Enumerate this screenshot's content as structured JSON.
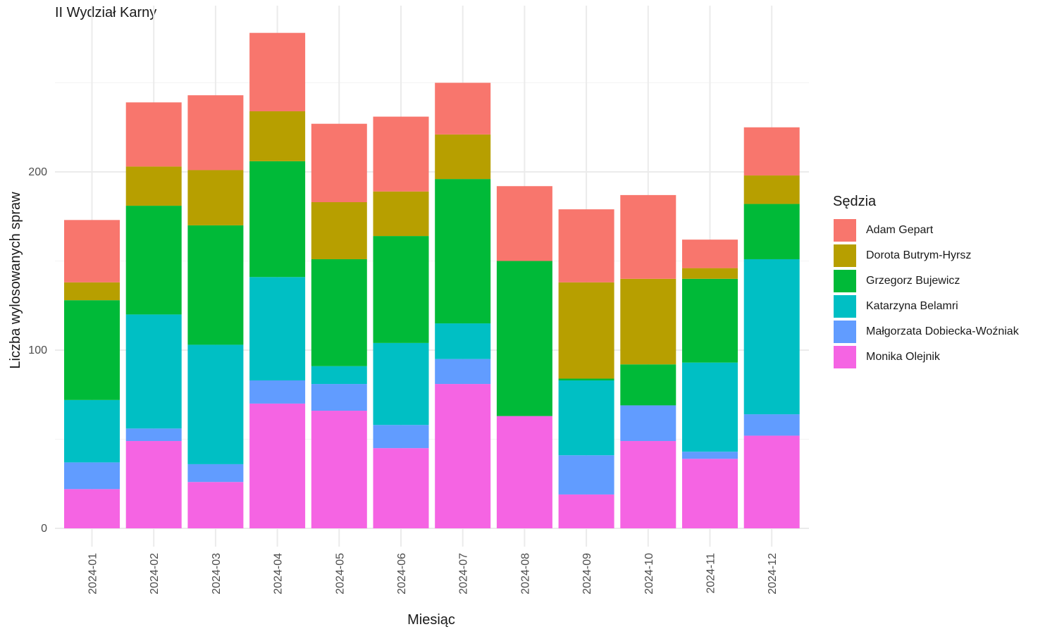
{
  "chart_data": {
    "type": "bar",
    "stacked": true,
    "title": "II Wydział Karny",
    "xlabel": "Miesiąc",
    "ylabel": "Liczba wylosowanych spraw",
    "ylim": [
      0,
      280
    ],
    "yticks": [
      0,
      100,
      200
    ],
    "grid": true,
    "legend_title": "Sędzia",
    "legend_position": "right",
    "categories": [
      "2024-01",
      "2024-02",
      "2024-03",
      "2024-04",
      "2024-05",
      "2024-06",
      "2024-07",
      "2024-08",
      "2024-09",
      "2024-10",
      "2024-11",
      "2024-12"
    ],
    "series": [
      {
        "name": "Monika Olejnik",
        "color": "#F564E3",
        "values": [
          22,
          49,
          26,
          70,
          66,
          45,
          81,
          63,
          19,
          49,
          39,
          52
        ]
      },
      {
        "name": "Małgorzata Dobiecka-Woźniak",
        "color": "#619CFF",
        "values": [
          15,
          7,
          10,
          13,
          15,
          13,
          14,
          0,
          22,
          20,
          4,
          12
        ]
      },
      {
        "name": "Katarzyna Belamri",
        "color": "#00BFC4",
        "values": [
          35,
          64,
          67,
          58,
          10,
          46,
          20,
          0,
          42,
          0,
          50,
          87
        ]
      },
      {
        "name": "Grzegorz Bujewicz",
        "color": "#00BA38",
        "values": [
          56,
          61,
          67,
          65,
          60,
          60,
          81,
          87,
          1,
          23,
          47,
          31
        ]
      },
      {
        "name": "Dorota Butrym-Hyrsz",
        "color": "#B79F00",
        "values": [
          10,
          22,
          31,
          28,
          32,
          25,
          25,
          0,
          54,
          48,
          6,
          16
        ]
      },
      {
        "name": "Adam Gepart",
        "color": "#F8766D",
        "values": [
          35,
          36,
          42,
          44,
          44,
          42,
          29,
          42,
          41,
          47,
          16,
          27
        ]
      }
    ],
    "legend_order": [
      "Adam Gepart",
      "Dorota Butrym-Hyrsz",
      "Grzegorz Bujewicz",
      "Katarzyna Belamri",
      "Małgorzata Dobiecka-Woźniak",
      "Monika Olejnik"
    ]
  }
}
